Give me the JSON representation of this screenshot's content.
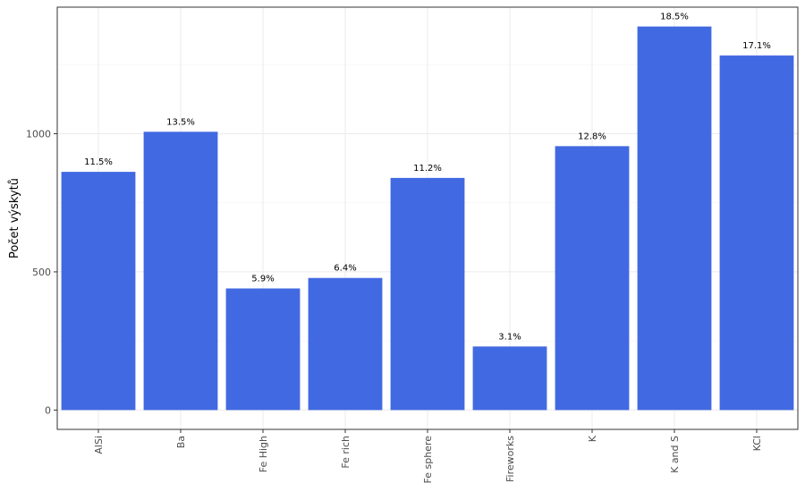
{
  "chart_data": {
    "type": "bar",
    "title": "",
    "xlabel": "",
    "ylabel": "Počet výskytů",
    "categories": [
      "AlSi",
      "Ba",
      "Fe High",
      "Fe rich",
      "Fe sphere",
      "Fireworks",
      "K",
      "K and S",
      "KCl"
    ],
    "values": [
      862,
      1007,
      440,
      478,
      840,
      230,
      955,
      1388,
      1283
    ],
    "labels": [
      "11.5%",
      "13.5%",
      "5.9%",
      "6.4%",
      "11.2%",
      "3.1%",
      "12.8%",
      "18.5%",
      "17.1%"
    ],
    "y_ticks": [
      0,
      500,
      1000
    ],
    "y_tick_labels": [
      "0",
      "500",
      "1000"
    ],
    "ylim": [
      -70,
      1458
    ],
    "grid": true,
    "legend": "none",
    "bar_color": "#4169E1"
  }
}
